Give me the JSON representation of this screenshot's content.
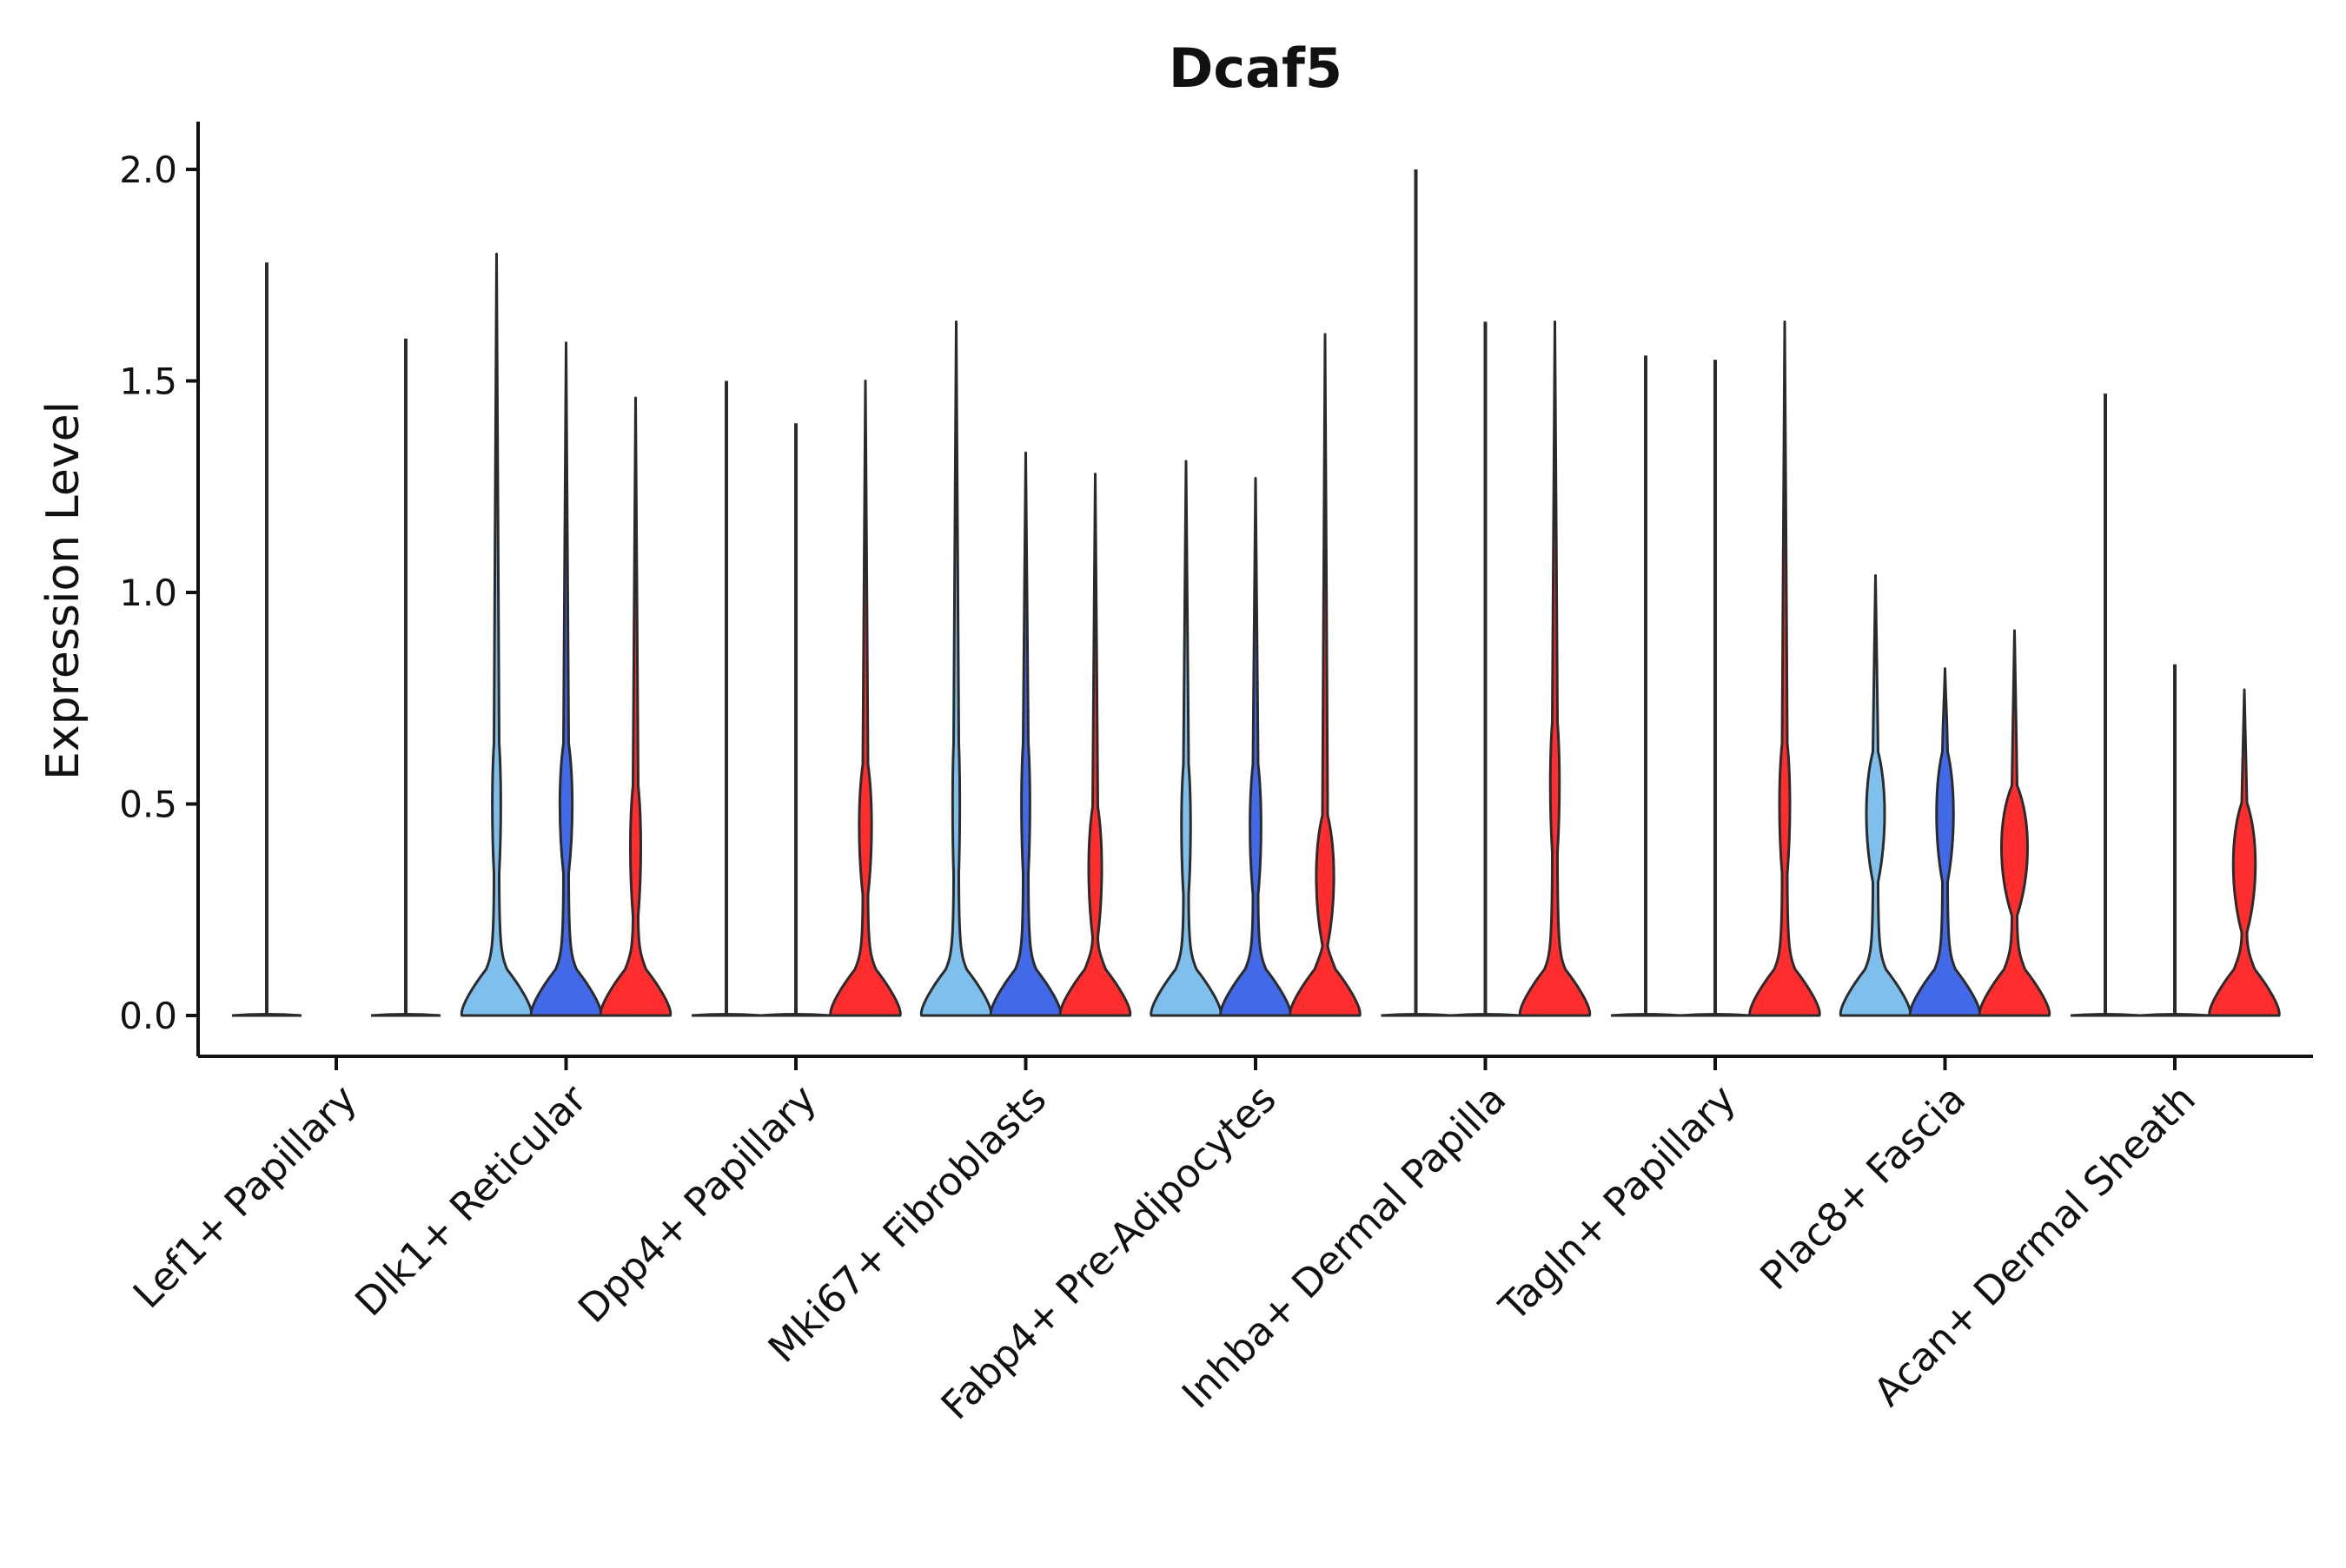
{
  "chart_data": {
    "type": "violin",
    "title": "Dcaf5",
    "xlabel": "",
    "ylabel": "Expression Level",
    "ylim": [
      -0.1,
      2.1
    ],
    "yticks": [
      0.0,
      0.5,
      1.0,
      1.5,
      2.0
    ],
    "ytick_labels": [
      "0.0",
      "0.5",
      "1.0",
      "1.5",
      "2.0"
    ],
    "colors": {
      "light_blue": "#7fbfee",
      "blue": "#4169e8",
      "red": "#ff2d2d",
      "outline": "#2b2b2b"
    },
    "categories": [
      {
        "label": "Lef1+ Papillary",
        "violins": [
          {
            "color": "light_blue",
            "max": 1.78,
            "bulge": 0.0,
            "mode": 0.0
          },
          {
            "color": "blue",
            "max": 0.0,
            "bulge": 0.0,
            "mode": 0.0
          },
          {
            "color": "red",
            "max": 1.6,
            "bulge": 0.0,
            "mode": 0.0
          }
        ]
      },
      {
        "label": "Dlk1+ Reticular",
        "violins": [
          {
            "color": "light_blue",
            "max": 1.8,
            "bulge": 0.55,
            "mode": 0.5
          },
          {
            "color": "blue",
            "max": 1.59,
            "bulge": 0.85,
            "mode": 0.5
          },
          {
            "color": "red",
            "max": 1.46,
            "bulge": 0.7,
            "mode": 0.4
          }
        ]
      },
      {
        "label": "Dpp4+ Papillary",
        "violins": [
          {
            "color": "light_blue",
            "max": 1.5,
            "bulge": 0.0,
            "mode": 0.0
          },
          {
            "color": "blue",
            "max": 1.4,
            "bulge": 0.0,
            "mode": 0.0
          },
          {
            "color": "red",
            "max": 1.5,
            "bulge": 0.85,
            "mode": 0.45
          }
        ]
      },
      {
        "label": "Mki67+ Fibroblasts",
        "violins": [
          {
            "color": "light_blue",
            "max": 1.64,
            "bulge": 0.45,
            "mode": 0.5
          },
          {
            "color": "blue",
            "max": 1.33,
            "bulge": 0.55,
            "mode": 0.5
          },
          {
            "color": "red",
            "max": 1.28,
            "bulge": 0.9,
            "mode": 0.35
          }
        ]
      },
      {
        "label": "Fabp4+ Pre-Adipocytes",
        "violins": [
          {
            "color": "light_blue",
            "max": 1.31,
            "bulge": 0.6,
            "mode": 0.45
          },
          {
            "color": "blue",
            "max": 1.27,
            "bulge": 0.75,
            "mode": 0.45
          },
          {
            "color": "red",
            "max": 1.61,
            "bulge": 1.25,
            "mode": 0.33
          }
        ]
      },
      {
        "label": "Inhba+ Dermal Papilla",
        "violins": [
          {
            "color": "light_blue",
            "max": 2.0,
            "bulge": 0.0,
            "mode": 0.0
          },
          {
            "color": "blue",
            "max": 1.64,
            "bulge": 0.0,
            "mode": 0.0
          },
          {
            "color": "red",
            "max": 1.64,
            "bulge": 0.6,
            "mode": 0.55
          }
        ]
      },
      {
        "label": "Tagln+ Papillary",
        "violins": [
          {
            "color": "light_blue",
            "max": 1.56,
            "bulge": 0.0,
            "mode": 0.0
          },
          {
            "color": "blue",
            "max": 1.55,
            "bulge": 0.0,
            "mode": 0.0
          },
          {
            "color": "red",
            "max": 1.64,
            "bulge": 0.7,
            "mode": 0.5
          }
        ]
      },
      {
        "label": "Plac8+ Fascia",
        "violins": [
          {
            "color": "light_blue",
            "max": 1.04,
            "bulge": 1.3,
            "mode": 0.48
          },
          {
            "color": "blue",
            "max": 0.82,
            "bulge": 1.2,
            "mode": 0.48
          },
          {
            "color": "red",
            "max": 0.91,
            "bulge": 1.9,
            "mode": 0.4
          }
        ]
      },
      {
        "label": "Acan+ Dermal Sheath",
        "violins": [
          {
            "color": "light_blue",
            "max": 1.47,
            "bulge": 0.0,
            "mode": 0.0
          },
          {
            "color": "blue",
            "max": 0.83,
            "bulge": 0.0,
            "mode": 0.0
          },
          {
            "color": "red",
            "max": 0.77,
            "bulge": 1.6,
            "mode": 0.36
          }
        ]
      }
    ]
  }
}
